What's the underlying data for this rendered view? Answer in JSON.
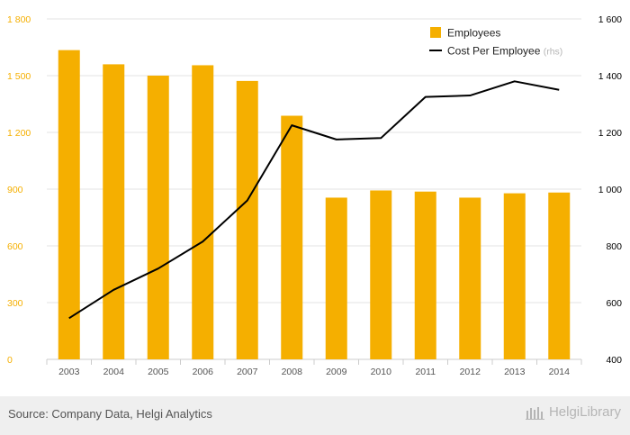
{
  "chart_data": {
    "type": "bar+line",
    "categories": [
      "2003",
      "2004",
      "2005",
      "2006",
      "2007",
      "2008",
      "2009",
      "2010",
      "2011",
      "2012",
      "2013",
      "2014"
    ],
    "series": [
      {
        "name": "Employees",
        "type": "bar",
        "axis": "left",
        "color": "#F5AF00",
        "values": [
          1635,
          1560,
          1500,
          1555,
          1472,
          1288,
          855,
          893,
          887,
          855,
          878,
          882
        ]
      },
      {
        "name": "Cost Per Employee",
        "name_suffix": "(rhs)",
        "type": "line",
        "axis": "right",
        "color": "#000000",
        "values": [
          545,
          645,
          720,
          815,
          960,
          1225,
          1175,
          1180,
          1325,
          1330,
          1380,
          1350
        ]
      }
    ],
    "y_left": {
      "ylim": [
        0,
        1800
      ],
      "ticks": [
        0,
        300,
        600,
        900,
        1200,
        1500,
        1800
      ],
      "tick_labels": [
        "0",
        "300",
        "600",
        "900",
        "1 200",
        "1 500",
        "1 800"
      ],
      "color": "#F5AF00"
    },
    "y_right": {
      "ylim": [
        400,
        1600
      ],
      "ticks": [
        400,
        600,
        800,
        1000,
        1200,
        1400,
        1600
      ],
      "tick_labels": [
        "400",
        "600",
        "800",
        "1 000",
        "1 200",
        "1 400",
        "1 600"
      ],
      "color": "#000000"
    },
    "grid": true,
    "legend_position": "top-right"
  },
  "footer": {
    "source": "Source: Company Data, Helgi Analytics",
    "brand": "HelgiLibrary"
  }
}
